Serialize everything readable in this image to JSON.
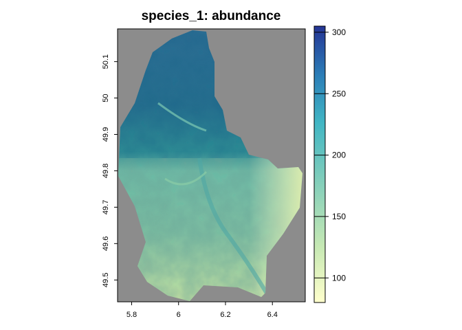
{
  "chart_data": {
    "type": "heatmap",
    "title": "species_1: abundance",
    "xlabel": "",
    "ylabel": "",
    "x_ticks": [
      "5.8",
      "6",
      "6.2",
      "6.4"
    ],
    "y_ticks": [
      "49.5",
      "49.6",
      "49.7",
      "49.8",
      "49.9",
      "50",
      "50.1"
    ],
    "xlim": [
      5.74,
      6.54
    ],
    "ylim": [
      49.44,
      50.19
    ],
    "legend": {
      "ticks": [
        "100",
        "150",
        "200",
        "250",
        "300"
      ],
      "range": [
        80,
        305
      ],
      "colormap": [
        "#ffffcc",
        "#c7e9b4",
        "#7fcdbb",
        "#41b6c4",
        "#2c7fb8",
        "#253494"
      ]
    },
    "na_color": "#8c8c8c",
    "grid": false
  }
}
